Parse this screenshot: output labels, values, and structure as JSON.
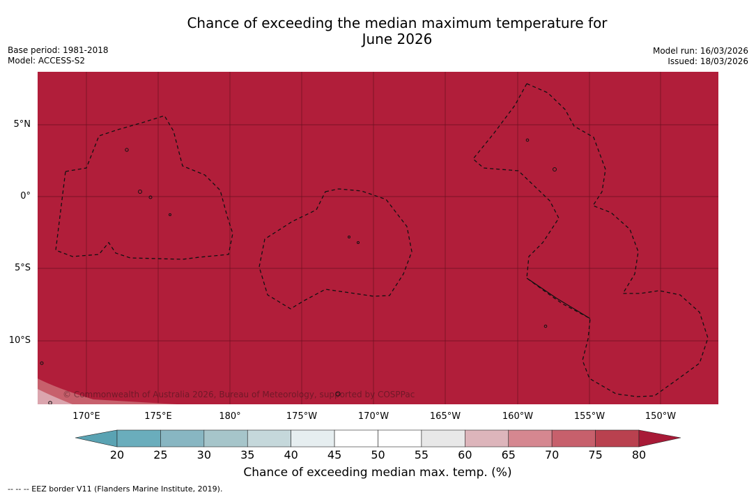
{
  "title_line1": "Chance of exceeding the median maximum temperature for",
  "title_line2": "June 2026",
  "base_period": "Base period: 1981-2018",
  "model": "Model: ACCESS-S2",
  "model_run": "Model run: 16/03/2026",
  "issued": "Issued: 18/03/2026",
  "lat_labels": [
    "5°N",
    "0°",
    "5°S",
    "10°S"
  ],
  "lon_labels": [
    "170°E",
    "175°E",
    "180°",
    "175°W",
    "170°W",
    "165°W",
    "160°W",
    "155°W",
    "150°W"
  ],
  "copyright": "© Commonwealth of Australia 2026, Bureau of Meteorology, supported by COSPPac",
  "colorbar": {
    "ticks": [
      "20",
      "25",
      "30",
      "35",
      "40",
      "45",
      "50",
      "55",
      "60",
      "65",
      "70",
      "75",
      "80"
    ],
    "label": "Chance of exceeding median max. temp. (%)",
    "colors": [
      "#6aadbc",
      "#88b6c2",
      "#a6c5ca",
      "#c5d8db",
      "#e6eef0",
      "#ffffff",
      "#ffffff",
      "#e8e8e8",
      "#ddb5bb",
      "#d58790",
      "#c7606c",
      "#b9414f"
    ],
    "under_color": "#5aa3b3",
    "over_color": "#a81a37"
  },
  "map_colors": {
    "fill": "#b11e3a",
    "corner": "#c7606c"
  },
  "legend_note": "--  --  -- EEZ border V11 (Flanders Marine Institute, 2019)."
}
